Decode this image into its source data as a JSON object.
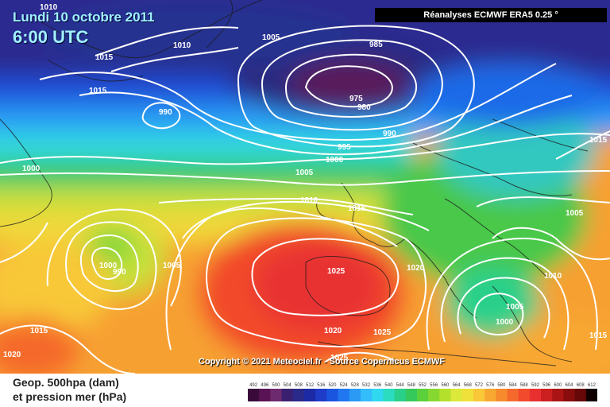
{
  "header": {
    "date": "Lundi 10 octobre 2011",
    "time": "6:00 UTC",
    "source": "Réanalyses ECMWF ERA5 0.25 °"
  },
  "footer": {
    "copyright": "Copyright © 2021 Meteociel.fr - Source Copernicus ECMWF",
    "legend_line1": "Geop. 500hpa (dam)",
    "legend_line2": "et pression mer (hPa)"
  },
  "scale": {
    "ticks": [
      "492",
      "496",
      "500",
      "504",
      "508",
      "512",
      "516",
      "520",
      "524",
      "528",
      "532",
      "536",
      "540",
      "544",
      "548",
      "552",
      "556",
      "560",
      "564",
      "568",
      "572",
      "576",
      "580",
      "584",
      "588",
      "592",
      "596",
      "600",
      "604",
      "608",
      "612"
    ],
    "colors": [
      "#3a0a3a",
      "#5a1455",
      "#6e2a6e",
      "#3a2070",
      "#2a2a8a",
      "#1d2aa6",
      "#1e3cc8",
      "#1a55e0",
      "#2077f0",
      "#2a9af5",
      "#33bdfa",
      "#30d8f0",
      "#2bdcc0",
      "#2ad08a",
      "#35c85a",
      "#5ad03a",
      "#86d830",
      "#b4e02c",
      "#dce83a",
      "#f0e03a",
      "#f8c838",
      "#f8a830",
      "#f78a2c",
      "#f56a2c",
      "#f24a2c",
      "#e83030",
      "#cc2020",
      "#aa1414",
      "#880c0c",
      "#660808",
      "#110000"
    ]
  },
  "isobar_labels": [
    "1010",
    "1005",
    "1015",
    "1015",
    "1010",
    "990",
    "985",
    "975",
    "980",
    "990",
    "995",
    "1000",
    "1005",
    "1000",
    "1010",
    "1015",
    "1015",
    "1005",
    "1000",
    "990",
    "1005",
    "1010",
    "1005",
    "1000",
    "1015",
    "1020",
    "1025",
    "1020",
    "1025",
    "1020",
    "1025",
    "1015"
  ]
}
